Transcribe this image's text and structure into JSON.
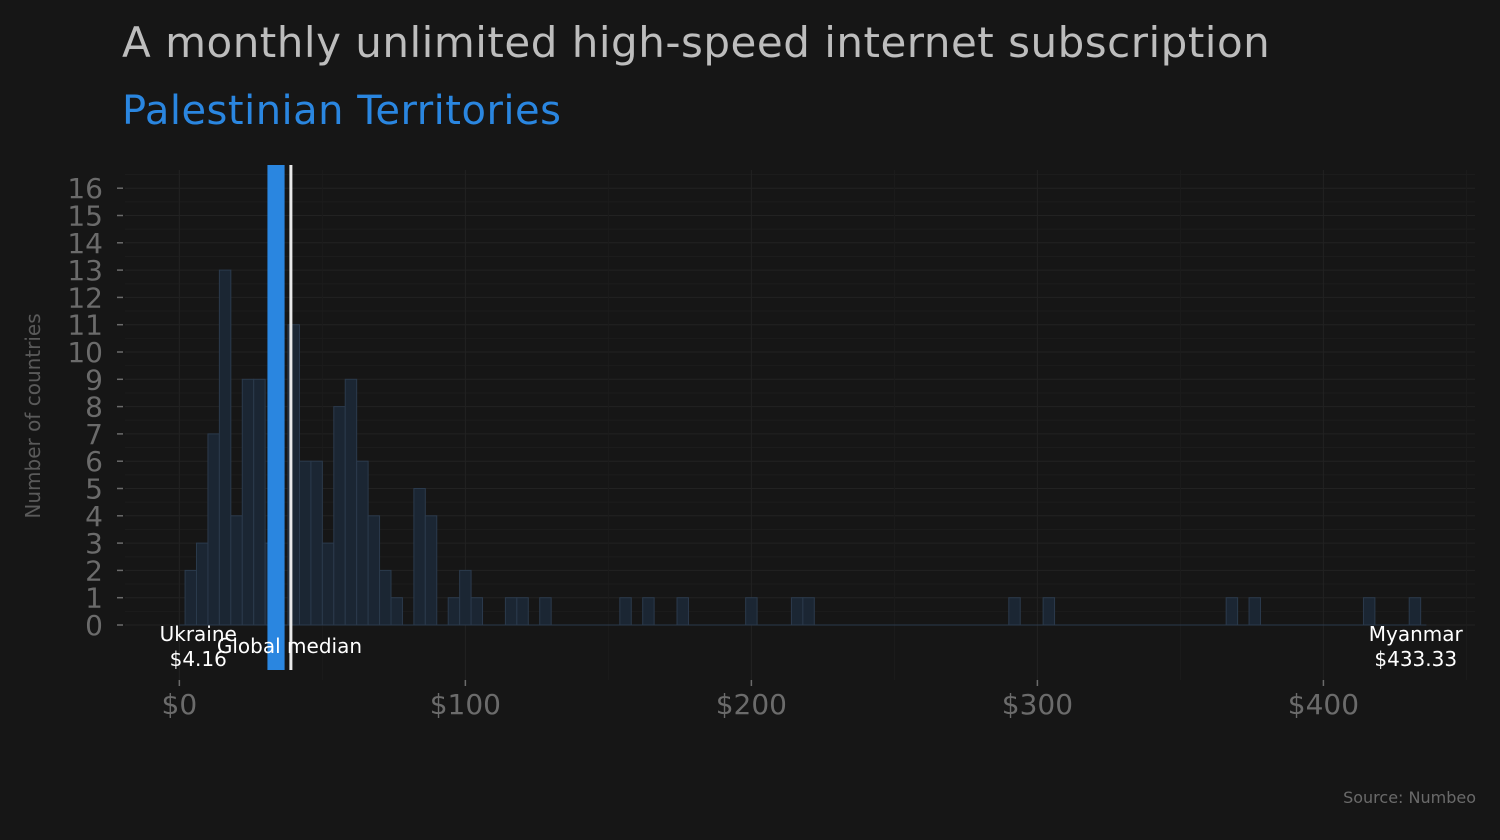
{
  "title": "A monthly unlimited high-speed internet subscription",
  "subtitle": "Palestinian Territories",
  "caption": "Source: Numbeo",
  "colors": {
    "background": "#161616",
    "highlight": "#2a86e0",
    "bars_fill": "#1b2633",
    "bars_stroke": "#2b3a4c",
    "median_line": "#e8e8e8",
    "axis_text": "#6b6b6b",
    "grid": "#222222"
  },
  "chart_data": {
    "type": "bar",
    "ylabel": "Number of countries",
    "xlabel": "",
    "xlim": [
      -19,
      453
    ],
    "ylim": [
      0,
      16.8
    ],
    "bin_width": 4,
    "x_tick_values": [
      0,
      100,
      200,
      300,
      400
    ],
    "x_tick_labels": [
      "$0",
      "$100",
      "$200",
      "$300",
      "$400"
    ],
    "y_ticks": [
      0,
      1,
      2,
      3,
      4,
      5,
      6,
      7,
      8,
      9,
      10,
      11,
      12,
      13,
      14,
      15,
      16
    ],
    "bins": [
      {
        "x": 4,
        "count": 2
      },
      {
        "x": 8,
        "count": 3
      },
      {
        "x": 12,
        "count": 7
      },
      {
        "x": 16,
        "count": 13
      },
      {
        "x": 20,
        "count": 4
      },
      {
        "x": 24,
        "count": 9
      },
      {
        "x": 28,
        "count": 9
      },
      {
        "x": 32,
        "count": 3
      },
      {
        "x": 40,
        "count": 11
      },
      {
        "x": 44,
        "count": 6
      },
      {
        "x": 48,
        "count": 6
      },
      {
        "x": 52,
        "count": 3
      },
      {
        "x": 56,
        "count": 8
      },
      {
        "x": 60,
        "count": 9
      },
      {
        "x": 64,
        "count": 6
      },
      {
        "x": 68,
        "count": 4
      },
      {
        "x": 72,
        "count": 2
      },
      {
        "x": 76,
        "count": 1
      },
      {
        "x": 84,
        "count": 5
      },
      {
        "x": 88,
        "count": 4
      },
      {
        "x": 96,
        "count": 1
      },
      {
        "x": 100,
        "count": 2
      },
      {
        "x": 104,
        "count": 1
      },
      {
        "x": 116,
        "count": 1
      },
      {
        "x": 120,
        "count": 1
      },
      {
        "x": 128,
        "count": 1
      },
      {
        "x": 156,
        "count": 1
      },
      {
        "x": 164,
        "count": 1
      },
      {
        "x": 176,
        "count": 1
      },
      {
        "x": 200,
        "count": 1
      },
      {
        "x": 216,
        "count": 1
      },
      {
        "x": 220,
        "count": 1
      },
      {
        "x": 292,
        "count": 1
      },
      {
        "x": 304,
        "count": 1
      },
      {
        "x": 368,
        "count": 1
      },
      {
        "x": 376,
        "count": 1
      },
      {
        "x": 416,
        "count": 1
      },
      {
        "x": 432,
        "count": 1
      }
    ],
    "highlight": {
      "name": "Palestinian Territories",
      "x": 33.8,
      "count": 16
    },
    "median": {
      "label": "Global median",
      "x": 39
    },
    "annotations": [
      {
        "name": "Ukraine",
        "value": "$4.16",
        "x": 4.16
      },
      {
        "name": "Myanmar",
        "value": "$433.33",
        "x": 433.33
      }
    ],
    "grid": true
  }
}
